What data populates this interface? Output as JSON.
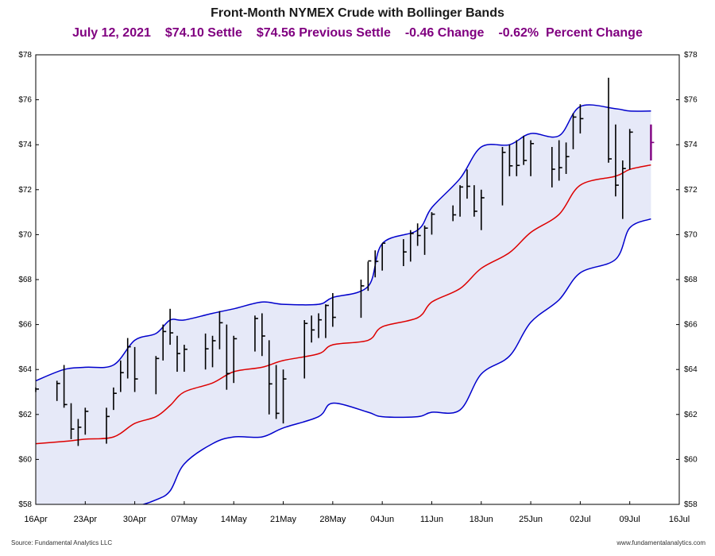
{
  "header": {
    "title": "Front-Month NYMEX Crude with Bollinger Bands",
    "date": "July 12, 2021",
    "settle": "$74.10 Settle",
    "previous_settle": "$74.56 Previous Settle",
    "change": "-0.46 Change",
    "percent_change": "-0.62%  Percent Change"
  },
  "footer": {
    "source": "Source: Fundamental Analytics LLC",
    "website": "www.fundamentalanalytics.com"
  },
  "colors": {
    "upper_band": "#0000cc",
    "lower_band": "#0000cc",
    "middle_band": "#dd0000",
    "band_fill": "#e6e9f8",
    "bars": "#000000",
    "last_bar": "#800080"
  },
  "chart_data": {
    "type": "ohlc",
    "title": "Front-Month NYMEX Crude with Bollinger Bands",
    "ylim": [
      58,
      78
    ],
    "yticks": [
      58,
      60,
      62,
      64,
      66,
      68,
      70,
      72,
      74,
      76,
      78
    ],
    "ytick_labels": [
      "$58",
      "$60",
      "$62",
      "$64",
      "$66",
      "$68",
      "$70",
      "$72",
      "$74",
      "$76",
      "$78"
    ],
    "xlim": [
      "2021-04-16",
      "2021-07-16"
    ],
    "xticks": [
      "2021-04-16",
      "2021-04-23",
      "2021-04-30",
      "2021-05-07",
      "2021-05-14",
      "2021-05-21",
      "2021-05-28",
      "2021-06-04",
      "2021-06-11",
      "2021-06-18",
      "2021-06-25",
      "2021-07-02",
      "2021-07-09",
      "2021-07-16"
    ],
    "xtick_labels": [
      "16Apr",
      "23Apr",
      "30Apr",
      "07May",
      "14May",
      "21May",
      "28May",
      "04Jun",
      "11Jun",
      "18Jun",
      "25Jun",
      "02Jul",
      "09Jul",
      "16Jul"
    ],
    "grid": false,
    "bars": [
      {
        "date": "2021-04-16",
        "high": 63.2,
        "low": 63.0,
        "close": 63.13
      },
      {
        "date": "2021-04-19",
        "high": 63.5,
        "low": 62.6,
        "close": 63.38
      },
      {
        "date": "2021-04-20",
        "high": 64.2,
        "low": 62.3,
        "close": 62.44
      },
      {
        "date": "2021-04-21",
        "high": 62.5,
        "low": 60.9,
        "close": 61.35
      },
      {
        "date": "2021-04-22",
        "high": 61.8,
        "low": 60.6,
        "close": 61.43
      },
      {
        "date": "2021-04-23",
        "high": 62.3,
        "low": 61.1,
        "close": 62.14
      },
      {
        "date": "2021-04-26",
        "high": 62.3,
        "low": 60.7,
        "close": 61.91
      },
      {
        "date": "2021-04-27",
        "high": 63.2,
        "low": 62.2,
        "close": 62.94
      },
      {
        "date": "2021-04-28",
        "high": 64.4,
        "low": 63.0,
        "close": 63.86
      },
      {
        "date": "2021-04-29",
        "high": 65.4,
        "low": 63.6,
        "close": 65.01
      },
      {
        "date": "2021-04-30",
        "high": 65.0,
        "low": 63.0,
        "close": 63.58
      },
      {
        "date": "2021-05-03",
        "high": 64.6,
        "low": 62.9,
        "close": 64.49
      },
      {
        "date": "2021-05-04",
        "high": 66.0,
        "low": 64.4,
        "close": 65.69
      },
      {
        "date": "2021-05-05",
        "high": 66.7,
        "low": 65.1,
        "close": 65.63
      },
      {
        "date": "2021-05-06",
        "high": 65.5,
        "low": 63.9,
        "close": 64.71
      },
      {
        "date": "2021-05-07",
        "high": 65.1,
        "low": 63.9,
        "close": 64.9
      },
      {
        "date": "2021-05-10",
        "high": 65.6,
        "low": 64.0,
        "close": 64.92
      },
      {
        "date": "2021-05-11",
        "high": 65.5,
        "low": 64.1,
        "close": 65.28
      },
      {
        "date": "2021-05-12",
        "high": 66.6,
        "low": 64.9,
        "close": 66.08
      },
      {
        "date": "2021-05-13",
        "high": 66.0,
        "low": 63.1,
        "close": 63.82
      },
      {
        "date": "2021-05-14",
        "high": 65.5,
        "low": 63.4,
        "close": 65.37
      },
      {
        "date": "2021-05-17",
        "high": 66.4,
        "low": 64.8,
        "close": 66.27
      },
      {
        "date": "2021-05-18",
        "high": 66.5,
        "low": 64.6,
        "close": 65.49
      },
      {
        "date": "2021-05-19",
        "high": 65.3,
        "low": 62.0,
        "close": 63.36
      },
      {
        "date": "2021-05-20",
        "high": 64.2,
        "low": 61.8,
        "close": 62.05
      },
      {
        "date": "2021-05-21",
        "high": 64.0,
        "low": 61.6,
        "close": 63.58
      },
      {
        "date": "2021-05-24",
        "high": 66.2,
        "low": 63.6,
        "close": 66.05
      },
      {
        "date": "2021-05-25",
        "high": 66.4,
        "low": 65.2,
        "close": 65.76
      },
      {
        "date": "2021-05-26",
        "high": 66.5,
        "low": 65.4,
        "close": 66.21
      },
      {
        "date": "2021-05-27",
        "high": 66.9,
        "low": 65.4,
        "close": 66.85
      },
      {
        "date": "2021-05-28",
        "high": 67.4,
        "low": 65.9,
        "close": 66.32
      },
      {
        "date": "2021-06-01",
        "high": 68.0,
        "low": 66.3,
        "close": 67.72
      },
      {
        "date": "2021-06-02",
        "high": 68.8,
        "low": 67.5,
        "close": 68.83
      },
      {
        "date": "2021-06-03",
        "high": 69.3,
        "low": 68.1,
        "close": 68.81
      },
      {
        "date": "2021-06-04",
        "high": 69.6,
        "low": 68.4,
        "close": 69.62
      },
      {
        "date": "2021-06-07",
        "high": 69.8,
        "low": 68.6,
        "close": 69.23
      },
      {
        "date": "2021-06-08",
        "high": 70.2,
        "low": 68.8,
        "close": 70.05
      },
      {
        "date": "2021-06-09",
        "high": 70.5,
        "low": 69.5,
        "close": 69.96
      },
      {
        "date": "2021-06-10",
        "high": 70.4,
        "low": 69.1,
        "close": 70.29
      },
      {
        "date": "2021-06-11",
        "high": 71.0,
        "low": 70.0,
        "close": 70.91
      },
      {
        "date": "2021-06-14",
        "high": 71.3,
        "low": 70.6,
        "close": 70.88
      },
      {
        "date": "2021-06-15",
        "high": 72.2,
        "low": 70.8,
        "close": 72.12
      },
      {
        "date": "2021-06-16",
        "high": 72.9,
        "low": 71.6,
        "close": 72.15
      },
      {
        "date": "2021-06-17",
        "high": 72.2,
        "low": 70.8,
        "close": 71.04
      },
      {
        "date": "2021-06-18",
        "high": 72.0,
        "low": 70.2,
        "close": 71.64
      },
      {
        "date": "2021-06-21",
        "high": 73.9,
        "low": 71.3,
        "close": 73.66
      },
      {
        "date": "2021-06-22",
        "high": 74.0,
        "low": 72.6,
        "close": 73.06
      },
      {
        "date": "2021-06-23",
        "high": 74.2,
        "low": 72.6,
        "close": 73.08
      },
      {
        "date": "2021-06-24",
        "high": 74.4,
        "low": 73.1,
        "close": 73.3
      },
      {
        "date": "2021-06-25",
        "high": 74.2,
        "low": 72.6,
        "close": 74.05
      },
      {
        "date": "2021-06-28",
        "high": 73.9,
        "low": 72.1,
        "close": 72.91
      },
      {
        "date": "2021-06-29",
        "high": 74.2,
        "low": 72.4,
        "close": 72.98
      },
      {
        "date": "2021-06-30",
        "high": 74.1,
        "low": 72.7,
        "close": 73.47
      },
      {
        "date": "2021-07-01",
        "high": 75.4,
        "low": 73.8,
        "close": 75.23
      },
      {
        "date": "2021-07-02",
        "high": 75.8,
        "low": 74.5,
        "close": 75.16
      },
      {
        "date": "2021-07-06",
        "high": 76.98,
        "low": 73.2,
        "close": 73.37
      },
      {
        "date": "2021-07-07",
        "high": 74.9,
        "low": 71.7,
        "close": 72.2
      },
      {
        "date": "2021-07-08",
        "high": 73.3,
        "low": 70.7,
        "close": 72.94
      },
      {
        "date": "2021-07-09",
        "high": 74.7,
        "low": 72.9,
        "close": 74.56
      },
      {
        "date": "2021-07-12",
        "high": 74.9,
        "low": 73.3,
        "close": 74.1
      }
    ],
    "bands": {
      "dates": [
        "2021-04-16",
        "2021-04-20",
        "2021-04-23",
        "2021-04-27",
        "2021-04-30",
        "2021-05-03",
        "2021-05-05",
        "2021-05-07",
        "2021-05-11",
        "2021-05-14",
        "2021-05-18",
        "2021-05-21",
        "2021-05-26",
        "2021-05-28",
        "2021-06-02",
        "2021-06-04",
        "2021-06-09",
        "2021-06-11",
        "2021-06-15",
        "2021-06-18",
        "2021-06-22",
        "2021-06-25",
        "2021-06-29",
        "2021-07-02",
        "2021-07-07",
        "2021-07-09",
        "2021-07-12"
      ],
      "upper": [
        63.5,
        64.0,
        64.1,
        64.2,
        65.3,
        65.6,
        66.2,
        66.2,
        66.5,
        66.7,
        67.0,
        66.9,
        66.9,
        67.2,
        67.7,
        69.6,
        70.2,
        71.2,
        72.5,
        73.9,
        74.0,
        74.5,
        74.4,
        75.7,
        75.6,
        75.5,
        75.5
      ],
      "middle": [
        60.7,
        60.8,
        60.9,
        61.0,
        61.6,
        61.9,
        62.4,
        63.0,
        63.4,
        63.9,
        64.1,
        64.4,
        64.7,
        65.1,
        65.3,
        65.9,
        66.3,
        67.0,
        67.6,
        68.5,
        69.2,
        70.1,
        70.9,
        72.2,
        72.6,
        72.9,
        73.1
      ],
      "lower": [
        57.9,
        57.6,
        57.7,
        57.8,
        57.9,
        58.2,
        58.6,
        59.8,
        60.7,
        61.0,
        61.0,
        61.4,
        61.9,
        62.5,
        62.1,
        61.9,
        61.9,
        62.1,
        62.2,
        63.8,
        64.6,
        66.1,
        67.1,
        68.3,
        68.9,
        70.3,
        70.7
      ]
    }
  }
}
